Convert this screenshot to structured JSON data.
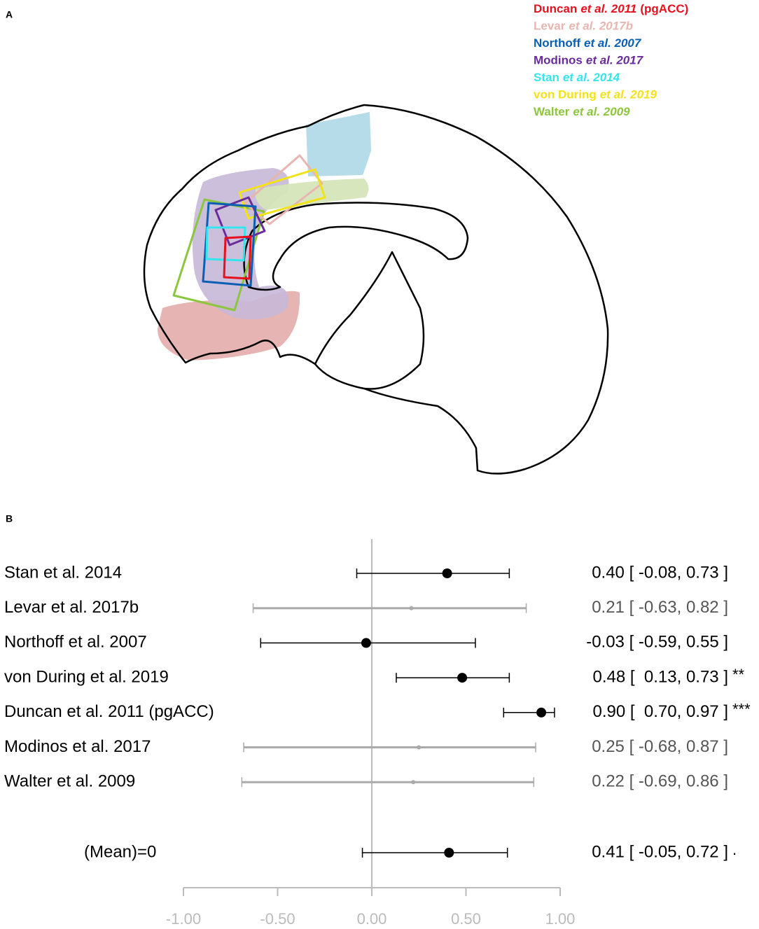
{
  "panel_a": {
    "label": "A",
    "legend": [
      {
        "parts": [
          "Duncan",
          "et al. 2011",
          "(pgACC)"
        ],
        "color": "#e8101e"
      },
      {
        "parts": [
          "Levar",
          "et al. 2017b"
        ],
        "color": "#e8b5b0"
      },
      {
        "parts": [
          "Northoff",
          "et al. 2007"
        ],
        "color": "#0a5fb4"
      },
      {
        "parts": [
          "Modinos",
          "et al. 2017"
        ],
        "color": "#6a2c9a"
      },
      {
        "parts": [
          "Stan",
          "et al. 2014"
        ],
        "color": "#33e6ee"
      },
      {
        "parts": [
          "von During",
          "et al. 2019"
        ],
        "color": "#f2e21a"
      },
      {
        "parts": [
          "Walter",
          "et al. 2009"
        ],
        "color": "#8cc63f"
      }
    ]
  },
  "chart_data": {
    "type": "forest",
    "panel_label": "B",
    "rows": [
      {
        "label": "Stan et al. 2014",
        "estimate": 0.4,
        "lower": -0.08,
        "upper": 0.73,
        "value_label": "0.40 [ -0.08, 0.73 ]",
        "color": "#000000"
      },
      {
        "label": "Levar et al. 2017b",
        "estimate": 0.21,
        "lower": -0.63,
        "upper": 0.82,
        "value_label": "0.21 [ -0.63, 0.82 ]",
        "color": "#aaaaaa"
      },
      {
        "label": "Northoff et al. 2007",
        "estimate": -0.03,
        "lower": -0.59,
        "upper": 0.55,
        "value_label": "-0.03 [ -0.59, 0.55 ]",
        "color": "#000000"
      },
      {
        "label": "von During et al. 2019",
        "estimate": 0.48,
        "lower": 0.13,
        "upper": 0.73,
        "value_label": "0.48 [  0.13, 0.73 ]",
        "significance": "**",
        "color": "#000000"
      },
      {
        "label": "Duncan et al. 2011 (pgACC)",
        "estimate": 0.9,
        "lower": 0.7,
        "upper": 0.97,
        "value_label": "0.90 [  0.70, 0.97 ]",
        "significance": "***",
        "color": "#000000"
      },
      {
        "label": "Modinos et al. 2017",
        "estimate": 0.25,
        "lower": -0.68,
        "upper": 0.87,
        "value_label": "0.25 [ -0.68, 0.87 ]",
        "color": "#aaaaaa"
      },
      {
        "label": "Walter et al. 2009",
        "estimate": 0.22,
        "lower": -0.69,
        "upper": 0.86,
        "value_label": "0.22 [ -0.69, 0.86 ]",
        "color": "#aaaaaa"
      }
    ],
    "mean": {
      "label": "(Mean)=0",
      "estimate": 0.41,
      "lower": -0.05,
      "upper": 0.72,
      "value_label": "0.41 [ -0.05, 0.72 ]",
      "significance": ".",
      "color": "#000000"
    },
    "xlim": [
      -1,
      1
    ],
    "xticks": [
      {
        "value": -1,
        "label": "-1.00"
      },
      {
        "value": -0.5,
        "label": "-0.50"
      },
      {
        "value": 0,
        "label": "0.00"
      },
      {
        "value": 0.5,
        "label": "0.50"
      },
      {
        "value": 1,
        "label": "1.00"
      }
    ]
  }
}
